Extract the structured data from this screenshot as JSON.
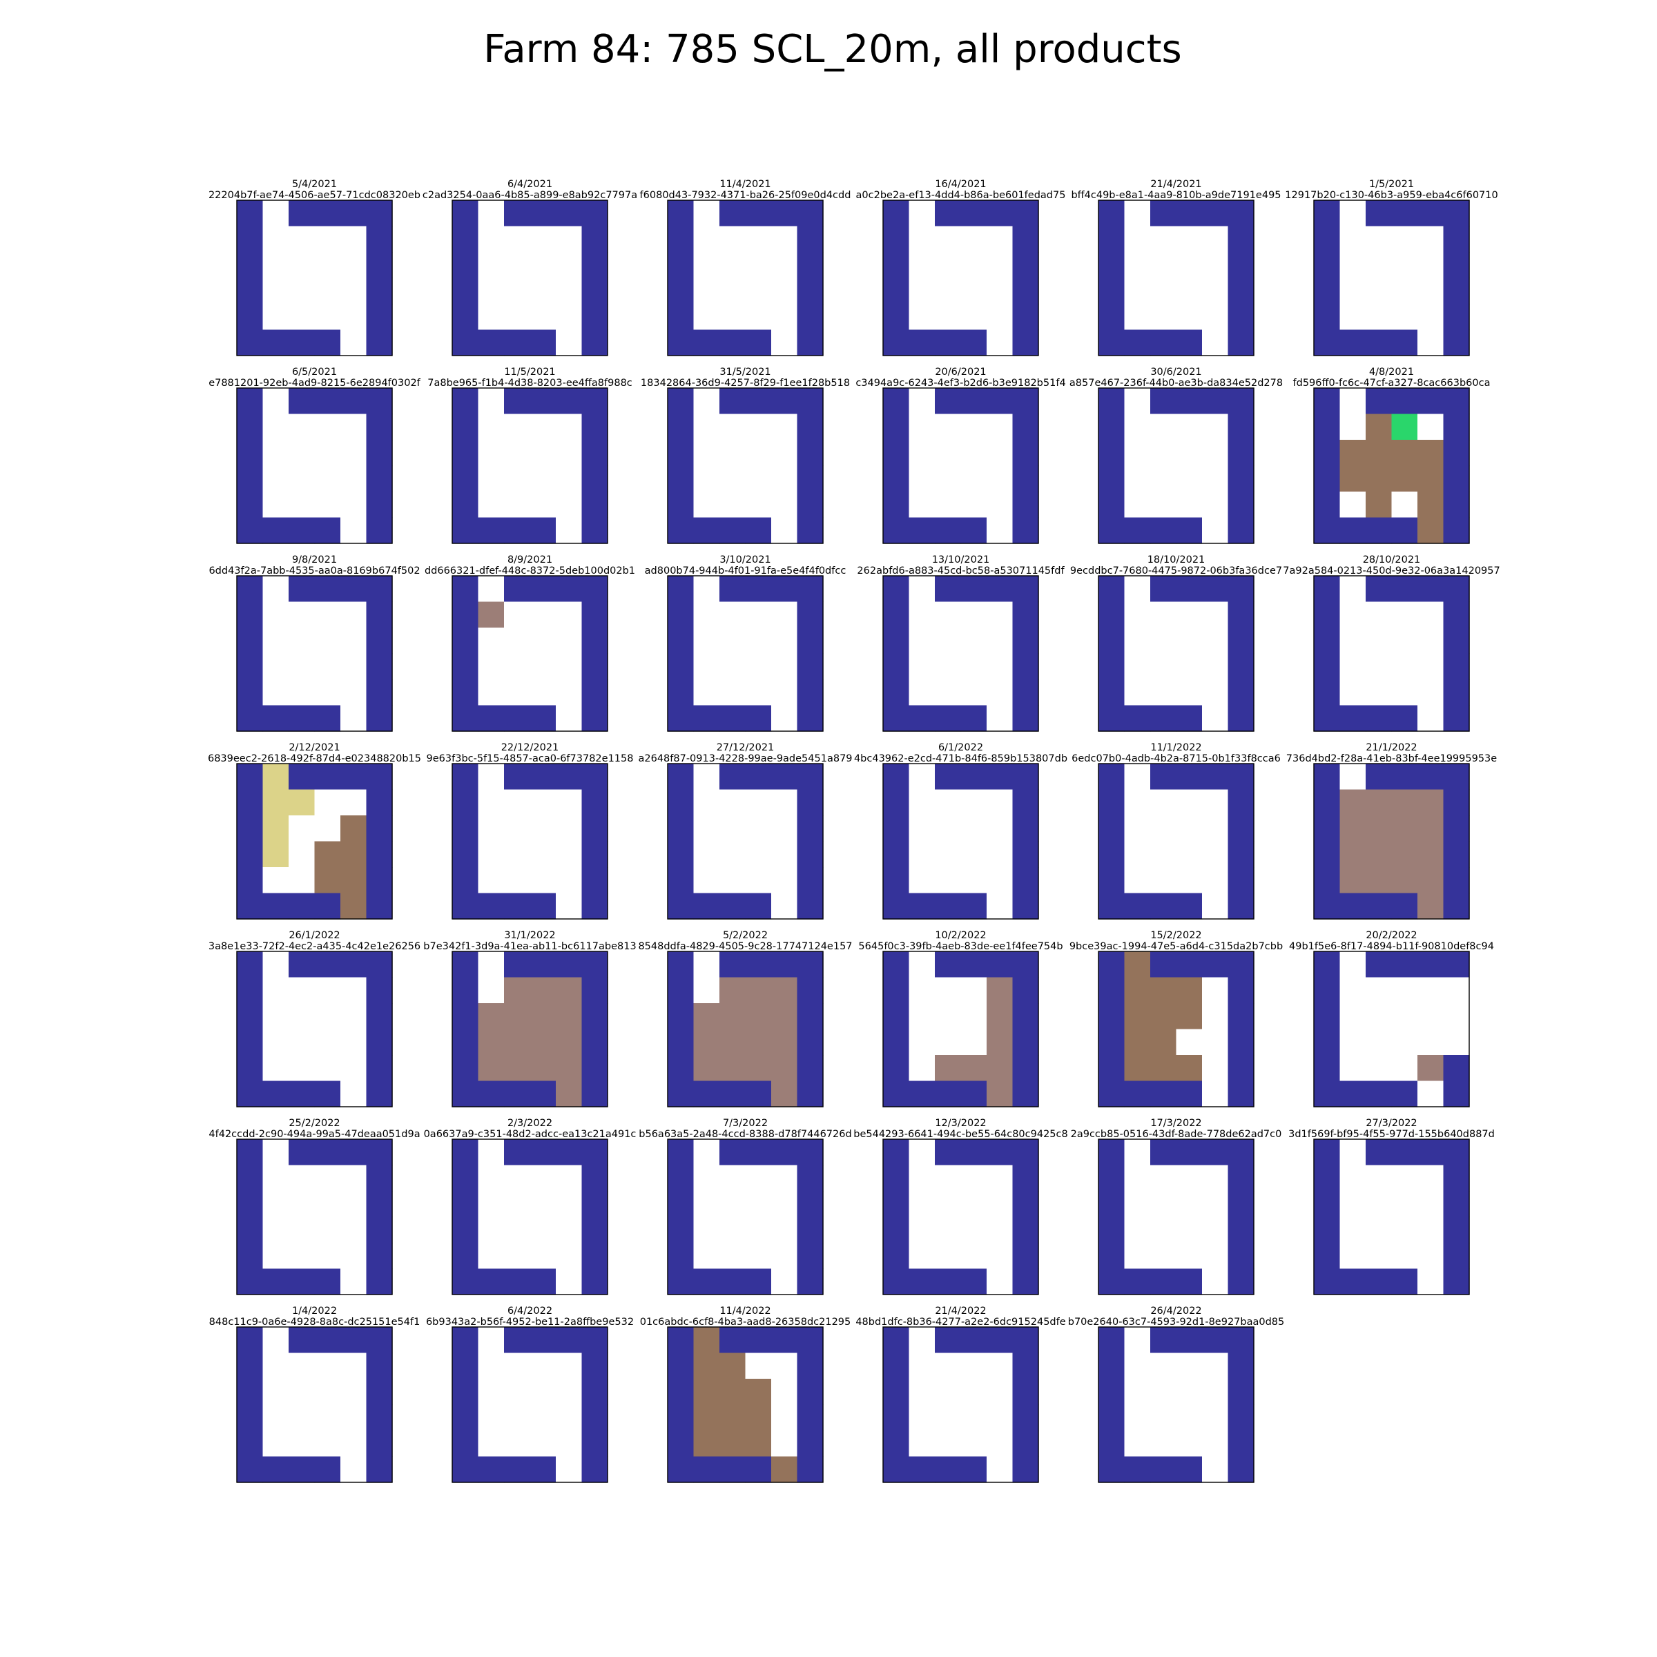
{
  "chart_data": {
    "type": "heatmap",
    "title": "Farm 84: 785 SCL_20m, all products",
    "grid": false,
    "layout": {
      "columns": 6
    },
    "palette": {
      "0": "#ffffff",
      "1": "#35339a",
      "2": "#94735b",
      "3": "#9c7e77",
      "4": "#dcd389",
      "5": "#2ad66b"
    },
    "panels": [
      {
        "date": "5/4/2021",
        "id": "22204b7f-ae74-4506-ae57-71cdc08320eb",
        "cells": [
          "101111",
          "100001",
          "100001",
          "100001",
          "100001",
          "111101"
        ]
      },
      {
        "date": "6/4/2021",
        "id": "c2ad3254-0aa6-4b85-a899-e8ab92c7797a",
        "cells": [
          "101111",
          "100001",
          "100001",
          "100001",
          "100001",
          "111101"
        ]
      },
      {
        "date": "11/4/2021",
        "id": "f6080d43-7932-4371-ba26-25f09e0d4cdd",
        "cells": [
          "101111",
          "100001",
          "100001",
          "100001",
          "100001",
          "111101"
        ]
      },
      {
        "date": "16/4/2021",
        "id": "a0c2be2a-ef13-4dd4-b86a-be601fedad75",
        "cells": [
          "101111",
          "100001",
          "100001",
          "100001",
          "100001",
          "111101"
        ]
      },
      {
        "date": "21/4/2021",
        "id": "bff4c49b-e8a1-4aa9-810b-a9de7191e495",
        "cells": [
          "101111",
          "100001",
          "100001",
          "100001",
          "100001",
          "111101"
        ]
      },
      {
        "date": "1/5/2021",
        "id": "12917b20-c130-46b3-a959-eba4c6f60710",
        "cells": [
          "101111",
          "100001",
          "100001",
          "100001",
          "100001",
          "111101"
        ]
      },
      {
        "date": "6/5/2021",
        "id": "e7881201-92eb-4ad9-8215-6e2894f0302f",
        "cells": [
          "101111",
          "100001",
          "100001",
          "100001",
          "100001",
          "111101"
        ]
      },
      {
        "date": "11/5/2021",
        "id": "7a8be965-f1b4-4d38-8203-ee4ffa8f988c",
        "cells": [
          "101111",
          "100001",
          "100001",
          "100001",
          "100001",
          "111101"
        ]
      },
      {
        "date": "31/5/2021",
        "id": "18342864-36d9-4257-8f29-f1ee1f28b518",
        "cells": [
          "101111",
          "100001",
          "100001",
          "100001",
          "100001",
          "111101"
        ]
      },
      {
        "date": "20/6/2021",
        "id": "c3494a9c-6243-4ef3-b2d6-b3e9182b51f4",
        "cells": [
          "101111",
          "100001",
          "100001",
          "100001",
          "100001",
          "111101"
        ]
      },
      {
        "date": "30/6/2021",
        "id": "a857e467-236f-44b0-ae3b-da834e52d278",
        "cells": [
          "101111",
          "100001",
          "100001",
          "100001",
          "100001",
          "111101"
        ]
      },
      {
        "date": "4/8/2021",
        "id": "fd596ff0-fc6c-47cf-a327-8cac663b60ca",
        "cells": [
          "101111",
          "102501",
          "122221",
          "122221",
          "102021",
          "111121"
        ]
      },
      {
        "date": "9/8/2021",
        "id": "6dd43f2a-7abb-4535-aa0a-8169b674f502",
        "cells": [
          "101111",
          "100001",
          "100001",
          "100001",
          "100001",
          "111101"
        ]
      },
      {
        "date": "8/9/2021",
        "id": "dd666321-dfef-448c-8372-5deb100d02b1",
        "cells": [
          "101111",
          "130001",
          "100001",
          "100001",
          "100001",
          "111101"
        ]
      },
      {
        "date": "3/10/2021",
        "id": "ad800b74-944b-4f01-91fa-e5e4f4f0dfcc",
        "cells": [
          "101111",
          "100001",
          "100001",
          "100001",
          "100001",
          "111101"
        ]
      },
      {
        "date": "13/10/2021",
        "id": "262abfd6-a883-45cd-bc58-a53071145fdf",
        "cells": [
          "101111",
          "100001",
          "100001",
          "100001",
          "100001",
          "111101"
        ]
      },
      {
        "date": "18/10/2021",
        "id": "9ecddbc7-7680-4475-9872-06b3fa36dce7",
        "cells": [
          "101111",
          "100001",
          "100001",
          "100001",
          "100001",
          "111101"
        ]
      },
      {
        "date": "28/10/2021",
        "id": "7a92a584-0213-450d-9e32-06a3a1420957",
        "cells": [
          "101111",
          "100001",
          "100001",
          "100001",
          "100001",
          "111101"
        ]
      },
      {
        "date": "2/12/2021",
        "id": "6839eec2-2618-492f-87d4-e02348820b15",
        "cells": [
          "141111",
          "144001",
          "140021",
          "140221",
          "100221",
          "111121"
        ]
      },
      {
        "date": "22/12/2021",
        "id": "9e63f3bc-5f15-4857-aca0-6f73782e1158",
        "cells": [
          "101111",
          "100001",
          "100001",
          "100001",
          "100001",
          "111101"
        ]
      },
      {
        "date": "27/12/2021",
        "id": "a2648f87-0913-4228-99ae-9ade5451a879",
        "cells": [
          "101111",
          "100001",
          "100001",
          "100001",
          "100001",
          "111101"
        ]
      },
      {
        "date": "6/1/2022",
        "id": "4bc43962-e2cd-471b-84f6-859b153807db",
        "cells": [
          "101111",
          "100001",
          "100001",
          "100001",
          "100001",
          "111101"
        ]
      },
      {
        "date": "11/1/2022",
        "id": "6edc07b0-4adb-4b2a-8715-0b1f33f8cca6",
        "cells": [
          "101111",
          "100001",
          "100001",
          "100001",
          "100001",
          "111101"
        ]
      },
      {
        "date": "21/1/2022",
        "id": "736d4bd2-f28a-41eb-83bf-4ee19995953e",
        "cells": [
          "101111",
          "133331",
          "133331",
          "133331",
          "133331",
          "111131"
        ]
      },
      {
        "date": "26/1/2022",
        "id": "3a8e1e33-72f2-4ec2-a435-4c42e1e26256",
        "cells": [
          "101111",
          "100001",
          "100001",
          "100001",
          "100001",
          "111101"
        ]
      },
      {
        "date": "31/1/2022",
        "id": "b7e342f1-3d9a-41ea-ab11-bc6117abe813",
        "cells": [
          "101111",
          "103331",
          "133331",
          "133331",
          "133331",
          "111131"
        ]
      },
      {
        "date": "5/2/2022",
        "id": "8548ddfa-4829-4505-9c28-17747124e157",
        "cells": [
          "101111",
          "103331",
          "133331",
          "133331",
          "133331",
          "111131"
        ]
      },
      {
        "date": "10/2/2022",
        "id": "5645f0c3-39fb-4aeb-83de-ee1f4fee754b",
        "cells": [
          "101111",
          "100031",
          "100031",
          "100031",
          "103331",
          "111131"
        ]
      },
      {
        "date": "15/2/2022",
        "id": "9bce39ac-1994-47e5-a6d4-c315da2b7cbb",
        "cells": [
          "121111",
          "122201",
          "122201",
          "122001",
          "122201",
          "111101"
        ]
      },
      {
        "date": "20/2/2022",
        "id": "49b1f5e6-8f17-4894-b11f-90810def8c94",
        "cells": [
          "101111",
          "100000",
          "100000",
          "100000",
          "100031",
          "111101"
        ]
      },
      {
        "date": "25/2/2022",
        "id": "4f42ccdd-2c90-494a-99a5-47deaa051d9a",
        "cells": [
          "101111",
          "100001",
          "100001",
          "100001",
          "100001",
          "111101"
        ]
      },
      {
        "date": "2/3/2022",
        "id": "0a6637a9-c351-48d2-adcc-ea13c21a491c",
        "cells": [
          "101111",
          "100001",
          "100001",
          "100001",
          "100001",
          "111101"
        ]
      },
      {
        "date": "7/3/2022",
        "id": "b56a63a5-2a48-4ccd-8388-d78f7446726d",
        "cells": [
          "101111",
          "100001",
          "100001",
          "100001",
          "100001",
          "111101"
        ]
      },
      {
        "date": "12/3/2022",
        "id": "be544293-6641-494c-be55-64c80c9425c8",
        "cells": [
          "101111",
          "100001",
          "100001",
          "100001",
          "100001",
          "111101"
        ]
      },
      {
        "date": "17/3/2022",
        "id": "2a9ccb85-0516-43df-8ade-778de62ad7c0",
        "cells": [
          "101111",
          "100001",
          "100001",
          "100001",
          "100001",
          "111101"
        ]
      },
      {
        "date": "27/3/2022",
        "id": "3d1f569f-bf95-4f55-977d-155b640d887d",
        "cells": [
          "101111",
          "100001",
          "100001",
          "100001",
          "100001",
          "111101"
        ]
      },
      {
        "date": "1/4/2022",
        "id": "848c11c9-0a6e-4928-8a8c-dc25151e54f1",
        "cells": [
          "101111",
          "100001",
          "100001",
          "100001",
          "100001",
          "111101"
        ]
      },
      {
        "date": "6/4/2022",
        "id": "6b9343a2-b56f-4952-be11-2a8ffbe9e532",
        "cells": [
          "101111",
          "100001",
          "100001",
          "100001",
          "100001",
          "111101"
        ]
      },
      {
        "date": "11/4/2022",
        "id": "01c6abdc-6cf8-4ba3-aad8-26358dc21295",
        "cells": [
          "121111",
          "122001",
          "122201",
          "122201",
          "122201",
          "111121"
        ]
      },
      {
        "date": "21/4/2022",
        "id": "48bd1dfc-8b36-4277-a2e2-6dc915245dfe",
        "cells": [
          "101111",
          "100001",
          "100001",
          "100001",
          "100001",
          "111101"
        ]
      },
      {
        "date": "26/4/2022",
        "id": "b70e2640-63c7-4593-92d1-8e927baa0d85",
        "cells": [
          "101111",
          "100001",
          "100001",
          "100001",
          "100001",
          "111101"
        ]
      }
    ]
  }
}
